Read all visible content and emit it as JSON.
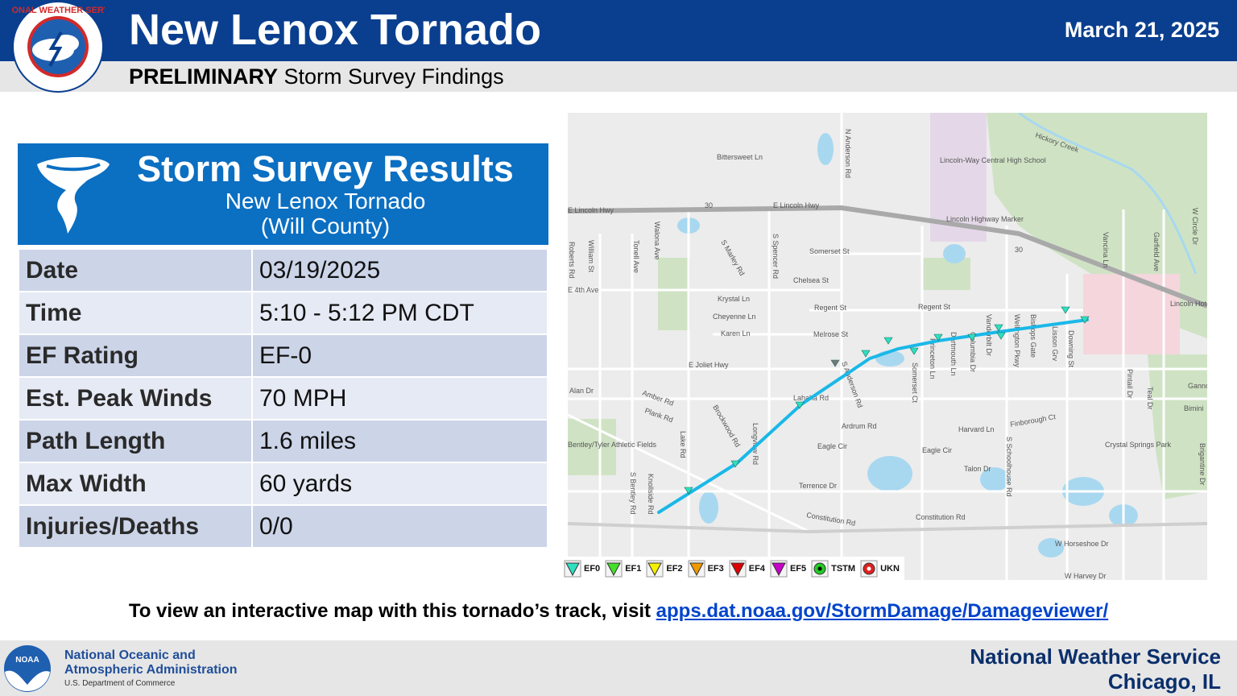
{
  "header": {
    "title": "New Lenox Tornado",
    "date": "March 21, 2025",
    "subtitle_bold": "PRELIMINARY",
    "subtitle_rest": " Storm Survey Findings",
    "logo_text": "NATIONAL WEATHER SERVICE"
  },
  "results": {
    "title": "Storm Survey Results",
    "subtitle_line1": "New Lenox Tornado",
    "subtitle_line2": "(Will County)",
    "rows": [
      {
        "label": "Date",
        "value": "03/19/2025"
      },
      {
        "label": "Time",
        "value": "5:10 - 5:12 PM CDT"
      },
      {
        "label": "EF Rating",
        "value": "EF-0"
      },
      {
        "label": "Est. Peak Winds",
        "value": "70 MPH"
      },
      {
        "label": "Path Length",
        "value": "1.6 miles"
      },
      {
        "label": "Max Width",
        "value": "60 yards"
      },
      {
        "label": "Injuries/Deaths",
        "value": "0/0"
      }
    ]
  },
  "map": {
    "colors": {
      "track": "#1ab8e8",
      "water": "#a8d8f0",
      "park": "#cfe3c4",
      "road": "#ffffff",
      "highway": "#a9a9a9"
    },
    "labels": [
      "Bittersweet Ln",
      "N Anderson Rd",
      "Lincoln-Way Central High School",
      "Hickory Creek",
      "E Lincoln Hwy",
      "E Lincoln Hwy",
      "30",
      "30",
      "Lincoln Highway Marker",
      "Roberts Rd",
      "William St",
      "Tonell Ave",
      "Walona Ave",
      "S Marley Rd",
      "S Spencer Rd",
      "Somerset St",
      "Chelsea St",
      "Regent St",
      "Regent St",
      "Krystal Ln",
      "Cheyenne Ln",
      "Karen Ln",
      "Melrose St",
      "E 4th Ave",
      "E Joliet Hwy",
      "Alan Dr",
      "Amber Rd",
      "Plank Rd",
      "Lahaha Rd",
      "Ardrum Rd",
      "Eagle Cir",
      "Eagle Cir",
      "Harvard Ln",
      "Finborough Ct",
      "Talon Dr",
      "Terrence Dr",
      "Constitution Rd",
      "Constitution Rd",
      "Crystal Springs Park",
      "W Horseshoe Dr",
      "W Harvey Dr",
      "Vancina Ln",
      "Garfield Ave",
      "W Circle Dr",
      "Lincoln Hotel/Old Brick Tavern",
      "Pintail Dr",
      "Teal Dr",
      "Lake Rd",
      "Knollside Rd",
      "S Bentley Rd",
      "Longview Rd",
      "Brockwood Rd",
      "S Schoolhouse Rd",
      "Bentley/Tyler Athletic Fields",
      "Princeton Ln",
      "Dartmouth Ln",
      "Columbia Dr",
      "Vanderbilt Dr",
      "Wellington Pkwy",
      "Bishops Gate",
      "Lisson Grv",
      "Downing St",
      "Somerset Ct",
      "S Anderson Rd",
      "Gannon",
      "Bimini",
      "Brigantine Dr"
    ],
    "legend": [
      "EF0",
      "EF1",
      "EF2",
      "EF3",
      "EF4",
      "EF5",
      "TSTM",
      "UKN"
    ],
    "legend_colors": [
      "#2ee0c0",
      "#44e02a",
      "#f5f000",
      "#f09a00",
      "#e00000",
      "#c800c8",
      "#22cc22",
      "#e02020"
    ]
  },
  "visit": {
    "text": "To view an interactive map with this tornado’s track, visit ",
    "link": "apps.dat.noaa.gov/StormDamage/Damageviewer/"
  },
  "footer": {
    "noaa_line1": "National Oceanic and",
    "noaa_line2": "Atmospheric Administration",
    "noaa_dept": "U.S. Department of Commerce",
    "noaa_logo_text": "NOAA",
    "office_line1": "National Weather Service",
    "office_line2": "Chicago, IL"
  }
}
